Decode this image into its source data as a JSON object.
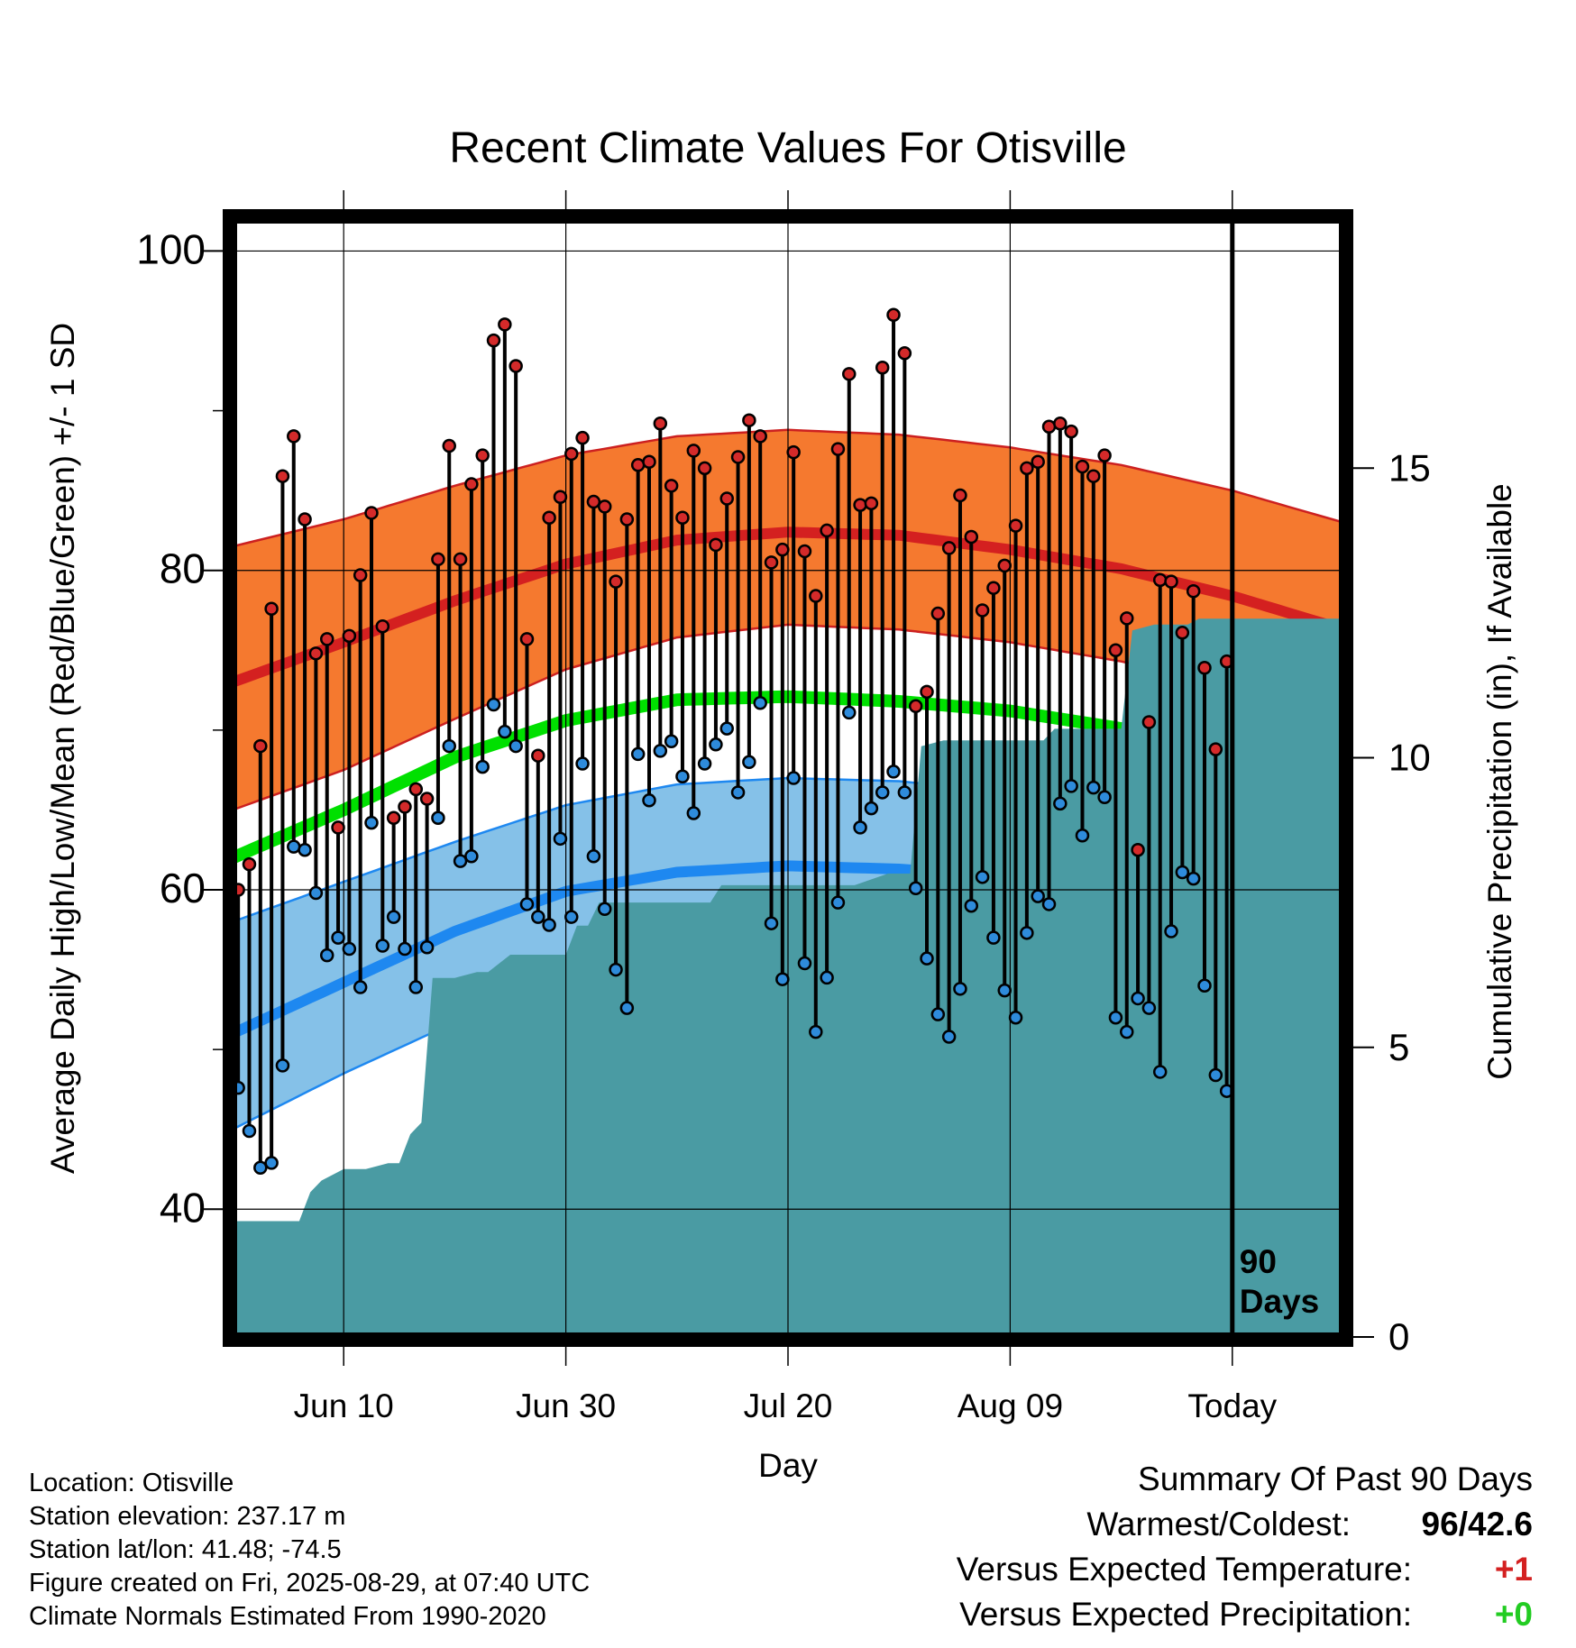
{
  "chart_data": {
    "type": "line",
    "title": "Recent Climate Values For Otisville",
    "xlabel": "Day",
    "ylabel": "Average Daily High/Low/Mean (Red/Blue/Green) +/- 1 SD",
    "y2label": "Cumulative Precipitation (in), If Available",
    "ylim": [
      32,
      102
    ],
    "y2lim": [
      0,
      19.3
    ],
    "yticks": [
      40,
      60,
      80,
      100
    ],
    "y2ticks": [
      0,
      5,
      10,
      15
    ],
    "xtick_labels": [
      "Jun 10",
      "Jun 30",
      "Jul 20",
      "Aug 09",
      "Today"
    ],
    "xtick_day": [
      10,
      30,
      50,
      70,
      90
    ],
    "xlim_day": [
      0,
      100
    ],
    "today_marker": "90\nDays",
    "grid": true,
    "colors": {
      "high_band": "#F5792F",
      "high_mean": "#D42020",
      "high_edge": "#CC2020",
      "low_band": "#85C1E8",
      "low_mean": "#1E88F0",
      "low_edge": "#1E88F0",
      "mean": "#00E000",
      "precip": "#4A9BA3",
      "high_point": "#D42A2A",
      "low_point": "#2E8BDB"
    },
    "normals": {
      "days": [
        0,
        10,
        20,
        30,
        40,
        50,
        60,
        70,
        80,
        90,
        100
      ],
      "high_upper": [
        81.5,
        83.2,
        85.3,
        87.2,
        88.4,
        88.8,
        88.5,
        87.7,
        86.6,
        85.0,
        83.0
      ],
      "high_mean": [
        73.0,
        75.5,
        78.1,
        80.4,
        81.9,
        82.4,
        82.2,
        81.3,
        80.1,
        78.4,
        76.3
      ],
      "high_lower": [
        65.0,
        67.5,
        70.7,
        73.8,
        75.8,
        76.6,
        76.3,
        75.5,
        74.3,
        72.7,
        70.5
      ],
      "mean": [
        62.0,
        65.0,
        68.3,
        70.6,
        71.9,
        72.1,
        71.8,
        71.2,
        70.1,
        68.4,
        66.1
      ],
      "low_upper": [
        58.0,
        60.5,
        63.0,
        65.3,
        66.6,
        67.0,
        66.8,
        66.1,
        65.0,
        63.8,
        62.2
      ],
      "low_mean": [
        51.0,
        54.2,
        57.4,
        59.9,
        61.1,
        61.5,
        61.3,
        60.8,
        59.6,
        57.8,
        55.3
      ],
      "low_lower": [
        45.0,
        48.5,
        51.7,
        54.2,
        55.5,
        56.0,
        55.8,
        55.1,
        54.1,
        52.2,
        49.2
      ]
    },
    "series": [
      {
        "name": "High",
        "values": [
          60.0,
          61.6,
          69.0,
          77.6,
          85.9,
          88.4,
          83.2,
          74.8,
          75.7,
          63.9,
          75.9,
          79.7,
          83.6,
          76.5,
          64.5,
          65.2,
          66.3,
          65.7,
          80.7,
          87.8,
          80.7,
          85.4,
          87.2,
          94.4,
          95.4,
          92.8,
          75.7,
          68.4,
          83.3,
          84.6,
          87.3,
          88.3,
          84.3,
          84.0,
          79.3,
          83.2,
          86.6,
          86.8,
          89.2,
          85.3,
          83.3,
          87.5,
          86.4,
          81.6,
          84.5,
          87.1,
          89.4,
          88.4,
          80.5,
          81.3,
          87.4,
          81.2,
          78.4,
          82.5,
          87.6,
          92.3,
          84.1,
          84.2,
          92.7,
          96.0,
          93.6,
          71.5,
          72.4,
          77.3,
          81.4,
          84.7,
          82.1,
          77.5,
          78.9,
          80.3,
          82.8,
          86.4,
          86.8,
          89.0,
          89.2,
          88.7,
          86.5,
          85.9,
          87.2,
          75.0,
          77.0,
          62.5,
          70.5,
          79.4,
          79.3,
          76.1,
          78.7,
          73.9,
          68.8,
          74.3
        ],
        "point_color": "#D42A2A"
      },
      {
        "name": "Low",
        "values": [
          47.6,
          44.9,
          42.6,
          42.9,
          49.0,
          62.7,
          62.5,
          59.8,
          55.9,
          57.0,
          56.3,
          53.9,
          64.2,
          56.5,
          58.3,
          56.3,
          53.9,
          56.4,
          64.5,
          69.0,
          61.8,
          62.1,
          67.7,
          71.6,
          69.9,
          69.0,
          59.1,
          58.3,
          57.8,
          63.2,
          58.3,
          67.9,
          62.1,
          58.8,
          55.0,
          52.6,
          68.5,
          65.6,
          68.7,
          69.3,
          67.1,
          64.8,
          67.9,
          69.1,
          70.1,
          66.1,
          68.0,
          71.7,
          57.9,
          54.4,
          67.0,
          55.4,
          51.1,
          54.5,
          59.2,
          71.1,
          63.9,
          65.1,
          66.1,
          67.4,
          66.1,
          60.1,
          55.7,
          52.2,
          50.8,
          53.8,
          59.0,
          60.8,
          57.0,
          53.7,
          52.0,
          57.3,
          59.6,
          59.1,
          65.4,
          66.5,
          63.4,
          66.4,
          65.8,
          52.0,
          51.1,
          53.2,
          52.6,
          48.6,
          57.4,
          61.1,
          60.7,
          54.0,
          48.4,
          47.4
        ],
        "point_color": "#2E8BDB"
      }
    ],
    "precipitation": {
      "name": "Cumulative Precipitation",
      "days": [
        0,
        6,
        7,
        8,
        10,
        12,
        14,
        15,
        16,
        17,
        18,
        19,
        20,
        22,
        23,
        25,
        27,
        30,
        31,
        32,
        33,
        34,
        36,
        38,
        40,
        43,
        44,
        45,
        47,
        49,
        50,
        53,
        54,
        56,
        59,
        61,
        62,
        64,
        68,
        73,
        74,
        75,
        76,
        77,
        79,
        80,
        81,
        83,
        86,
        87,
        88,
        90,
        100
      ],
      "values": [
        2.0,
        2.0,
        2.5,
        2.7,
        2.9,
        2.9,
        3.0,
        3.0,
        3.5,
        3.7,
        6.2,
        6.2,
        6.2,
        6.3,
        6.3,
        6.6,
        6.6,
        6.6,
        7.1,
        7.1,
        7.5,
        7.5,
        7.5,
        7.5,
        7.5,
        7.5,
        7.8,
        7.8,
        7.8,
        7.8,
        7.8,
        7.8,
        7.8,
        7.8,
        8.0,
        8.0,
        10.2,
        10.3,
        10.3,
        10.3,
        10.5,
        10.5,
        10.5,
        10.5,
        10.5,
        10.5,
        12.2,
        12.3,
        12.3,
        12.4,
        12.4,
        12.4,
        12.4
      ]
    }
  },
  "info": {
    "location": "Location: Otisville",
    "elevation": "Station elevation: 237.17 m",
    "latlon": "Station lat/lon: 41.48; -74.5",
    "created": "Figure created on Fri, 2025-08-29, at 07:40 UTC",
    "normals": "Climate Normals Estimated From 1990-2020"
  },
  "summary": {
    "title": "Summary Of Past 90 Days",
    "warm_cold_label": "Warmest/Coldest:",
    "warmest": "96",
    "slash": "/",
    "coldest": "42.6",
    "temp_label": "Versus Expected Temperature:",
    "temp_value": "+1",
    "temp_color": "#D42020",
    "precip_label": "Versus Expected Precipitation:",
    "precip_value": "+0",
    "precip_color": "#22CC22"
  }
}
